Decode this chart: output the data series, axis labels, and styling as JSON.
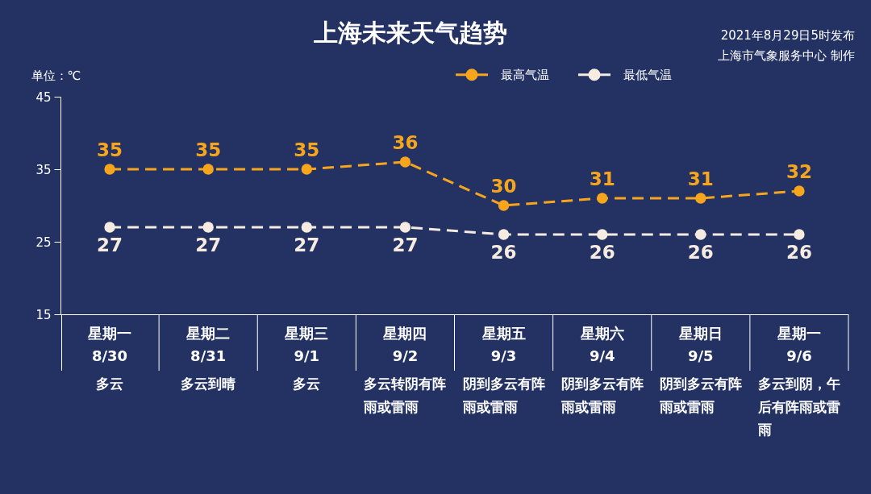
{
  "chart_data": {
    "type": "line",
    "title": "上海未来天气趋势",
    "ylabel": "单位：℃",
    "categories": [
      "星期一\n8/30",
      "星期二\n8/31",
      "星期三\n9/1",
      "星期四\n9/2",
      "星期五\n9/3",
      "星期六\n9/4",
      "星期日\n9/5",
      "星期一\n9/6"
    ],
    "series": [
      {
        "name": "最高气温",
        "color": "#f7a51c",
        "values": [
          35,
          35,
          35,
          36,
          30,
          31,
          31,
          32
        ]
      },
      {
        "name": "最低气温",
        "color": "#f5ebe0",
        "values": [
          27,
          27,
          27,
          27,
          26,
          26,
          26,
          26
        ]
      }
    ],
    "ylim": [
      15,
      45
    ],
    "yticks": [
      15,
      25,
      35,
      45
    ],
    "legend": "top right",
    "marker": "circle",
    "line_style": "dashed",
    "data_labels": true,
    "annotations": [
      "2021年8月29日5时发布",
      "上海市气象服务中心 制作",
      "多云",
      "多云到晴",
      "多云",
      "多云转阴有阵雨或雷雨",
      "阴到多云有阵雨或雷雨",
      "阴到多云有阵雨或雷雨",
      "阴到多云有阵雨或雷雨",
      "多云到阴，午后有阵雨或雷雨"
    ]
  }
}
